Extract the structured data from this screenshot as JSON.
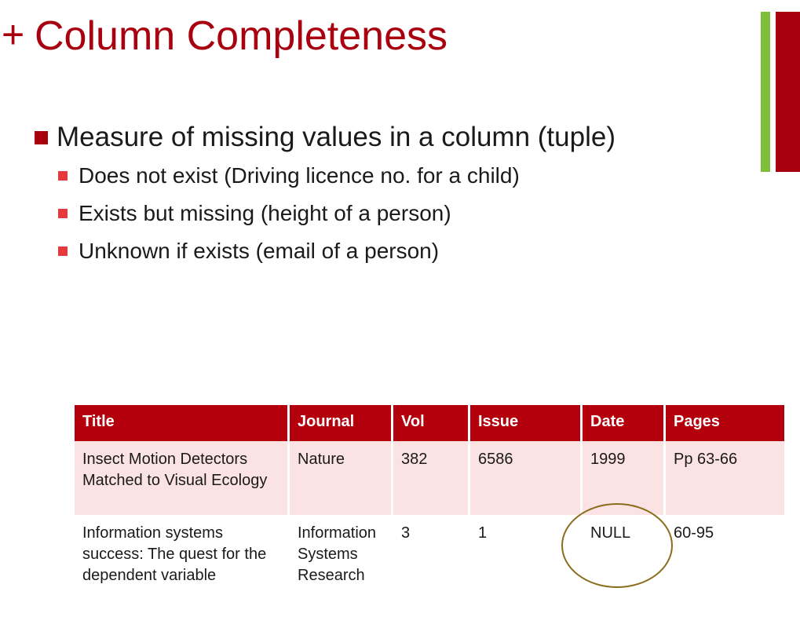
{
  "slide": {
    "marker": "+",
    "title": "Column Completeness"
  },
  "bullets": {
    "main": "Measure of missing values in a column (tuple)",
    "sub": [
      "Does not exist (Driving licence no. for a child)",
      "Exists but missing (height of a person)",
      "Unknown if exists (email of a person)"
    ]
  },
  "table": {
    "headers": [
      "Title",
      "Journal",
      "Vol",
      "Issue",
      "Date",
      "Pages"
    ],
    "rows": [
      [
        "Insect Motion Detectors Matched to Visual Ecology",
        "Nature",
        "382",
        "6586",
        "1999",
        "Pp 63-66"
      ],
      [
        "Information systems success: The quest for the dependent variable",
        "Information Systems Research",
        "3",
        "1",
        "NULL",
        "60-95"
      ]
    ]
  },
  "colors": {
    "accent_red": "#a8000e",
    "accent_green": "#7fbe3b",
    "header_red": "#b3000c",
    "row_shade": "#fbe3e3",
    "sub_bullet": "#e53a3f",
    "circle_outline": "#8a6d1c"
  }
}
